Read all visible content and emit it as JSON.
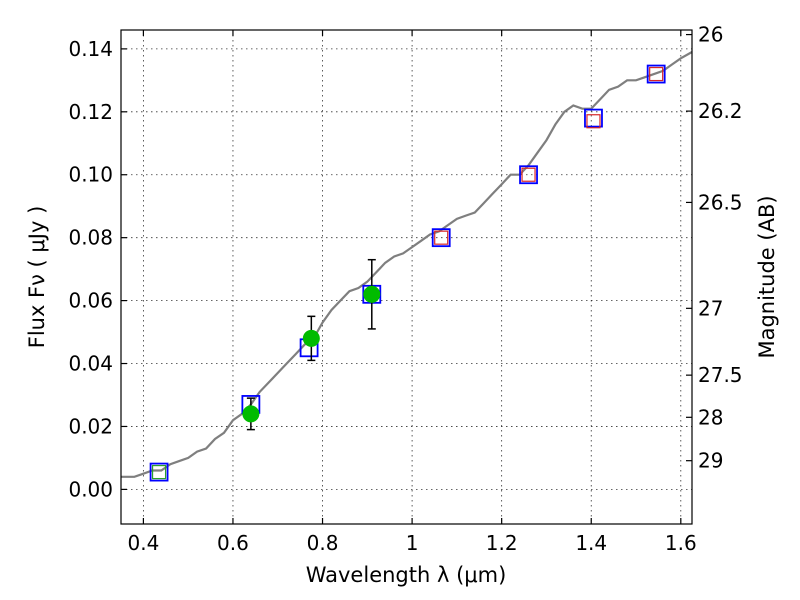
{
  "chart_data": {
    "type": "scatter",
    "xlabel": "Wavelength  λ (μm)",
    "ylabel": "Flux  Fν  ( μJy )",
    "ylabel_right": "Magnitude (AB)",
    "xlim": [
      0.35,
      1.625
    ],
    "ylim": [
      -0.011,
      0.146
    ],
    "grid": true,
    "x_ticks": [
      {
        "value": 0.4,
        "label": "0.4"
      },
      {
        "value": 0.6,
        "label": "0.6"
      },
      {
        "value": 0.8,
        "label": "0.8"
      },
      {
        "value": 1.0,
        "label": "1"
      },
      {
        "value": 1.2,
        "label": "1.2"
      },
      {
        "value": 1.4,
        "label": "1.4"
      },
      {
        "value": 1.6,
        "label": "1.6"
      }
    ],
    "y_ticks": [
      {
        "value": 0.0,
        "label": "0.00"
      },
      {
        "value": 0.02,
        "label": "0.02"
      },
      {
        "value": 0.04,
        "label": "0.04"
      },
      {
        "value": 0.06,
        "label": "0.06"
      },
      {
        "value": 0.08,
        "label": "0.08"
      },
      {
        "value": 0.1,
        "label": "0.10"
      },
      {
        "value": 0.12,
        "label": "0.12"
      },
      {
        "value": 0.14,
        "label": "0.14"
      }
    ],
    "right_ticks": [
      {
        "mag": 26,
        "label": "26"
      },
      {
        "mag": 26.2,
        "label": "26.2"
      },
      {
        "mag": 26.5,
        "label": "26.5"
      },
      {
        "mag": 27,
        "label": "27"
      },
      {
        "mag": 27.5,
        "label": "27.5"
      },
      {
        "mag": 28,
        "label": "28"
      },
      {
        "mag": 29,
        "label": "29"
      }
    ],
    "series": [
      {
        "marker": "line",
        "color": "#7f7f7f",
        "x": [
          0.35,
          0.38,
          0.4,
          0.42,
          0.44,
          0.46,
          0.48,
          0.5,
          0.52,
          0.54,
          0.56,
          0.58,
          0.6,
          0.62,
          0.64,
          0.66,
          0.68,
          0.7,
          0.72,
          0.74,
          0.76,
          0.78,
          0.8,
          0.82,
          0.84,
          0.86,
          0.88,
          0.9,
          0.92,
          0.94,
          0.96,
          0.98,
          1.0,
          1.02,
          1.04,
          1.06,
          1.08,
          1.1,
          1.12,
          1.14,
          1.16,
          1.18,
          1.2,
          1.22,
          1.24,
          1.26,
          1.28,
          1.3,
          1.32,
          1.34,
          1.36,
          1.38,
          1.4,
          1.42,
          1.44,
          1.46,
          1.48,
          1.5,
          1.52,
          1.54,
          1.56,
          1.58,
          1.6,
          1.625
        ],
        "values": [
          0.004,
          0.004,
          0.005,
          0.006,
          0.006,
          0.008,
          0.009,
          0.01,
          0.012,
          0.013,
          0.016,
          0.018,
          0.022,
          0.024,
          0.027,
          0.031,
          0.034,
          0.037,
          0.04,
          0.043,
          0.046,
          0.048,
          0.053,
          0.057,
          0.06,
          0.063,
          0.064,
          0.066,
          0.069,
          0.072,
          0.074,
          0.075,
          0.077,
          0.079,
          0.081,
          0.082,
          0.084,
          0.086,
          0.087,
          0.088,
          0.091,
          0.094,
          0.097,
          0.1,
          0.1,
          0.103,
          0.107,
          0.111,
          0.116,
          0.12,
          0.122,
          0.121,
          0.121,
          0.124,
          0.127,
          0.128,
          0.13,
          0.13,
          0.131,
          0.132,
          0.133,
          0.135,
          0.137,
          0.139
        ]
      },
      {
        "marker": "open-square",
        "color": "#0000ff",
        "x": [
          0.435,
          0.64,
          0.77,
          0.91,
          1.065,
          1.26,
          1.405,
          1.545
        ],
        "values": [
          0.0055,
          0.027,
          0.045,
          0.062,
          0.08,
          0.1,
          0.118,
          0.132
        ]
      },
      {
        "marker": "open-square-small",
        "color": "#d62728",
        "x": [
          1.065,
          1.26,
          1.405,
          1.545
        ],
        "values": [
          0.08,
          0.1,
          0.117,
          0.132
        ]
      },
      {
        "marker": "open-square-small",
        "color": "#2ca02c",
        "x": [
          0.435
        ],
        "values": [
          0.0055
        ]
      },
      {
        "marker": "circle-errorbar",
        "color": "#00bb00",
        "x": [
          0.64,
          0.775,
          0.91
        ],
        "values": [
          0.024,
          0.048,
          0.062
        ],
        "yerr": [
          0.005,
          0.007,
          0.011
        ]
      }
    ]
  }
}
